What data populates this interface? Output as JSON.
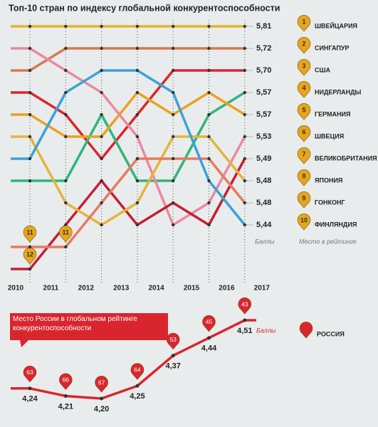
{
  "chart_data": [
    {
      "type": "bump",
      "title": "Топ-10 стран по индексу глобальной конкурентоспособности",
      "categories": [
        "2010",
        "2011",
        "2012",
        "2013",
        "2014",
        "2015",
        "2016",
        "2017"
      ],
      "score_label": "Баллы",
      "rank_label": "Место в рейтинге",
      "series": [
        {
          "name": "ШВЕЙЦАРИЯ",
          "color": "#e7b323",
          "ranks": [
            1,
            1,
            1,
            1,
            1,
            1,
            1
          ],
          "score": 5.81,
          "score_text": "5,81"
        },
        {
          "name": "СИНГАПУР",
          "color": "#d8794b",
          "ranks": [
            3,
            2,
            2,
            2,
            2,
            2,
            2
          ],
          "score": 5.72,
          "score_text": "5,72"
        },
        {
          "name": "США",
          "color": "#d9262e",
          "ranks": [
            4,
            5,
            7,
            5,
            3,
            3,
            3
          ],
          "score": 5.7,
          "score_text": "5,70"
        },
        {
          "name": "НИДЕРЛАНДЫ",
          "color": "#2fb57c",
          "ranks": [
            8,
            8,
            5,
            8,
            8,
            5,
            4
          ],
          "score": 5.57,
          "score_text": "5,57"
        },
        {
          "name": "ГЕРМАНИЯ",
          "color": "#eba11e",
          "ranks": [
            5,
            6,
            6,
            4,
            5,
            4,
            5
          ],
          "score": 5.57,
          "score_text": "5,57"
        },
        {
          "name": "ШВЕЦИЯ",
          "color": "#ea88a0",
          "ranks": [
            2,
            3,
            4,
            6,
            10,
            9,
            6
          ],
          "score": 5.53,
          "score_text": "5,53"
        },
        {
          "name": "ВЕЛИКОБРИТАНИЯ",
          "color": "#c51f35",
          "ranks": [
            12,
            10,
            8,
            10,
            9,
            10,
            7
          ],
          "score": 5.49,
          "score_text": "5,49"
        },
        {
          "name": "ЯПОНИЯ",
          "color": "#e2b53c",
          "ranks": [
            6,
            9,
            10,
            9,
            6,
            6,
            8
          ],
          "score": 5.48,
          "score_text": "5,48"
        },
        {
          "name": "ГОНКОНГ",
          "color": "#e8795f",
          "ranks": [
            11,
            11,
            9,
            7,
            7,
            7,
            9
          ],
          "score": 5.48,
          "score_text": "5,48"
        },
        {
          "name": "ФИНЛЯНДИЯ",
          "color": "#3ba1d9",
          "ranks": [
            7,
            4,
            3,
            3,
            4,
            8,
            10
          ],
          "score": 5.44,
          "score_text": "5,44"
        }
      ]
    },
    {
      "type": "line",
      "title": "Место России в глобальном рейтинге конкурентоспособности",
      "value_axis_label": "Баллы",
      "series": [
        {
          "name": "РОССИЯ",
          "color": "#d9262e",
          "values": [
            4.24,
            4.21,
            4.2,
            4.25,
            4.37,
            4.44,
            4.51
          ],
          "value_labels": [
            "4,24",
            "4,21",
            "4,20",
            "4,25",
            "4,37",
            "4,44",
            "4,51"
          ],
          "ranks": [
            63,
            66,
            67,
            64,
            53,
            45,
            43
          ]
        }
      ]
    }
  ]
}
